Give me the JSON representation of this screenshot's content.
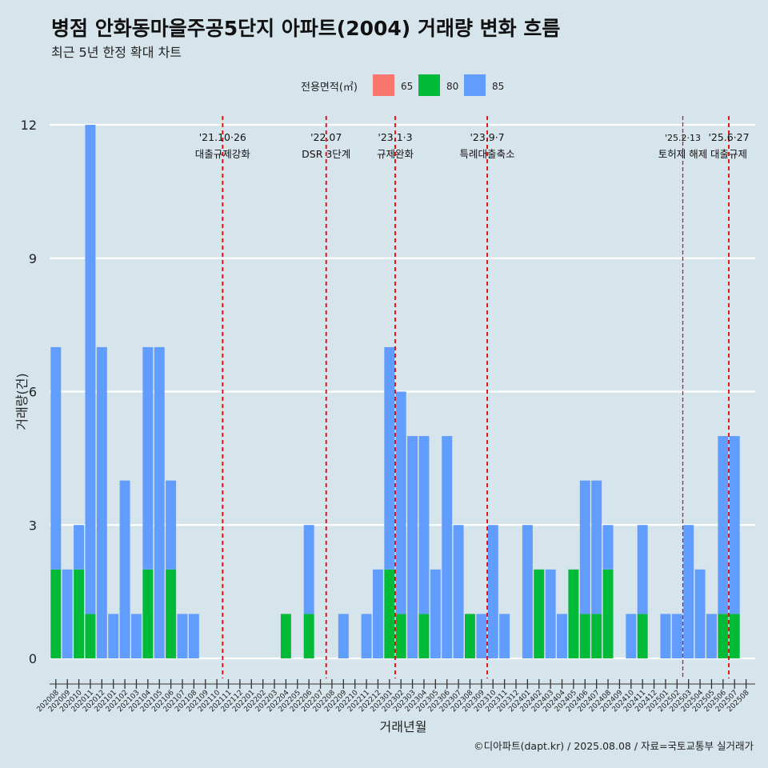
{
  "title": "병점 안화동마을주공5단지 아파트(2004) 거래량 변화 흐름",
  "subtitle": "최근 5년 한정 확대 차트",
  "source": "©디아파트(dapt.kr) / 2025.08.08 / 자료=국토교통부 실거래가",
  "chart_data": {
    "type": "bar",
    "stacked": true,
    "xlabel": "거래년월",
    "ylabel": "거래량(건)",
    "ylim": [
      0,
      12
    ],
    "yticks": [
      0,
      3,
      6,
      9,
      12
    ],
    "legend": {
      "title": "전용면적(㎡)",
      "position": "top"
    },
    "categories": [
      "202008",
      "202009",
      "202010",
      "202011",
      "202012",
      "202101",
      "202102",
      "202103",
      "202104",
      "202105",
      "202106",
      "202107",
      "202108",
      "202109",
      "202110",
      "202111",
      "202112",
      "202201",
      "202202",
      "202203",
      "202204",
      "202205",
      "202206",
      "202207",
      "202208",
      "202209",
      "202210",
      "202211",
      "202212",
      "202301",
      "202302",
      "202303",
      "202304",
      "202305",
      "202306",
      "202307",
      "202308",
      "202309",
      "202310",
      "202311",
      "202312",
      "202401",
      "202402",
      "202403",
      "202404",
      "202405",
      "202406",
      "202407",
      "202408",
      "202409",
      "202410",
      "202411",
      "202412",
      "202501",
      "202502",
      "202503",
      "202504",
      "202505",
      "202506",
      "202507",
      "202508"
    ],
    "series": [
      {
        "name": "65",
        "color": "#f8766d",
        "values": [
          0,
          0,
          0,
          0,
          0,
          0,
          0,
          0,
          0,
          0,
          0,
          0,
          0,
          0,
          0,
          0,
          0,
          0,
          0,
          0,
          0,
          0,
          0,
          0,
          0,
          0,
          0,
          0,
          0,
          0,
          0,
          0,
          0,
          0,
          0,
          0,
          0,
          0,
          0,
          0,
          0,
          0,
          0,
          0,
          0,
          0,
          0,
          0,
          0,
          0,
          0,
          0,
          0,
          0,
          0,
          0,
          0,
          0,
          0,
          0,
          0
        ]
      },
      {
        "name": "80",
        "color": "#00ba38",
        "values": [
          2,
          0,
          2,
          1,
          0,
          0,
          0,
          0,
          2,
          0,
          2,
          0,
          0,
          0,
          0,
          0,
          0,
          0,
          0,
          0,
          1,
          0,
          1,
          0,
          0,
          0,
          0,
          0,
          0,
          2,
          1,
          0,
          1,
          0,
          0,
          0,
          1,
          0,
          0,
          0,
          0,
          0,
          2,
          0,
          0,
          2,
          1,
          1,
          2,
          0,
          0,
          1,
          0,
          0,
          0,
          0,
          0,
          0,
          1,
          1,
          0
        ]
      },
      {
        "name": "85",
        "color": "#619cff",
        "values": [
          5,
          2,
          1,
          11,
          7,
          1,
          4,
          1,
          5,
          7,
          2,
          1,
          1,
          0,
          0,
          0,
          0,
          0,
          0,
          0,
          0,
          0,
          2,
          0,
          0,
          1,
          0,
          1,
          2,
          5,
          5,
          5,
          4,
          2,
          5,
          3,
          0,
          1,
          3,
          1,
          0,
          3,
          0,
          2,
          1,
          0,
          3,
          3,
          1,
          0,
          1,
          2,
          0,
          1,
          1,
          3,
          2,
          1,
          4,
          4,
          0
        ]
      }
    ],
    "events": [
      {
        "date": "'21.10·26",
        "label": "대출규제강화",
        "x": 14.5,
        "color": "#ee0000",
        "style": "dashed"
      },
      {
        "date": "'22.07",
        "label": "DSR 3단계",
        "x": 23.5,
        "color": "#ee0000",
        "style": "dashed"
      },
      {
        "date": "'23.1·3",
        "label": "규제완화",
        "x": 29.5,
        "color": "#ee0000",
        "style": "dashed"
      },
      {
        "date": "'23.9·7",
        "label": "특례대출축소",
        "x": 37.5,
        "color": "#ee0000",
        "style": "dashed"
      },
      {
        "date": "'25.2·13",
        "label": "토허제 해제",
        "x": 54.5,
        "color": "#ee0000",
        "style": "dotted"
      },
      {
        "date": "'25.6·27",
        "label": "대출규제",
        "x": 58.5,
        "color": "#ee0000",
        "style": "dashed"
      }
    ]
  }
}
